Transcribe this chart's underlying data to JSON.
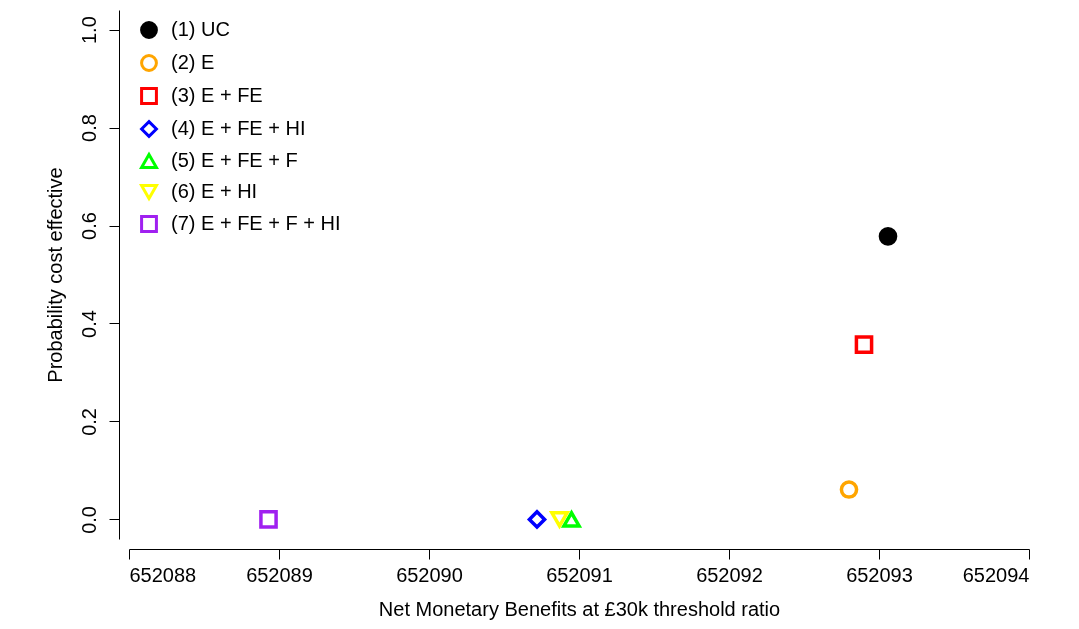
{
  "chart_data": {
    "type": "scatter",
    "xlabel": "Net Monetary Benefits at £30k threshold ratio",
    "ylabel": "Probability cost effective",
    "xlim": [
      652088,
      652094
    ],
    "xticks": [
      652088,
      652089,
      652090,
      652091,
      652092,
      652093,
      652094
    ],
    "ylim": [
      -0.04,
      1.04
    ],
    "yticks": [
      {
        "value": 0,
        "label": "0.0"
      },
      {
        "value": 0.2,
        "label": "0.2"
      },
      {
        "value": 0.4,
        "label": "0.4"
      },
      {
        "value": 0.6,
        "label": "0.6"
      },
      {
        "value": 0.8,
        "label": "0.8"
      },
      {
        "value": 1,
        "label": "1.0"
      }
    ],
    "grid": false,
    "legend": "top left",
    "series": [
      {
        "name": "(1) UC",
        "color": "#000000",
        "marker": "filled circle",
        "x": [
          652093.06
        ],
        "values": [
          0.578
        ]
      },
      {
        "name": "(2) E",
        "color": "#ffa500",
        "marker": "circle",
        "x": [
          652092.8
        ],
        "values": [
          0.061
        ]
      },
      {
        "name": "(3) E + FE",
        "color": "#ff0000",
        "marker": "square",
        "x": [
          652092.9
        ],
        "values": [
          0.357
        ]
      },
      {
        "name": "(4) E + FE + HI",
        "color": "#0000ff",
        "marker": "diamond",
        "x": [
          652090.72
        ],
        "values": [
          0
        ]
      },
      {
        "name": "(5) E + FE + F",
        "color": "#00ff00",
        "marker": "triangle",
        "x": [
          652090.95
        ],
        "values": [
          0
        ]
      },
      {
        "name": "(6) E + HI",
        "color": "#ffff00",
        "marker": "triangle-down",
        "x": [
          652090.87
        ],
        "values": [
          0
        ]
      },
      {
        "name": "(7) E + FE + F + HI",
        "color": "#a020f0",
        "marker": "square",
        "x": [
          652088.93
        ],
        "values": [
          0
        ]
      }
    ]
  }
}
